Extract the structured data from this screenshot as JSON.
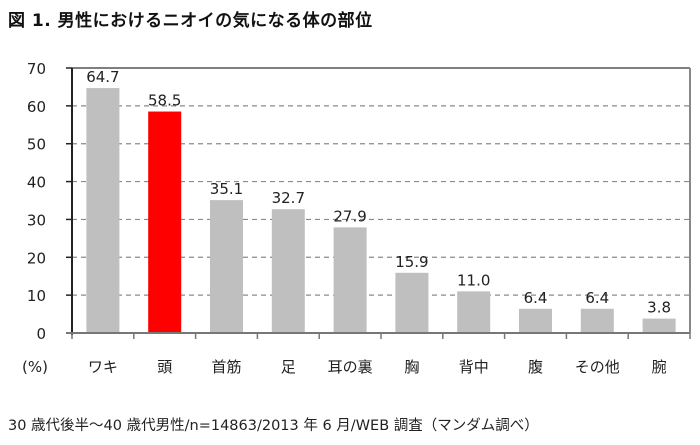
{
  "title": "図 1. 男性におけるニオイの気になる体の部位",
  "footnote": "30 歳代後半〜40 歳代男性/n=14863/2013 年 6 月/WEB 調査（マンダム調べ）",
  "chart_data": {
    "type": "bar",
    "title": "図 1. 男性におけるニオイの気になる体の部位",
    "xlabel": "",
    "ylabel": "(%)",
    "ylim": [
      0,
      70
    ],
    "yticks": [
      0,
      10,
      20,
      30,
      40,
      50,
      60,
      70
    ],
    "grid": "dashed horizontal",
    "legend": "none",
    "categories": [
      "ワキ",
      "頭",
      "首筋",
      "足",
      "耳の裏",
      "胸",
      "背中",
      "腹",
      "その他",
      "腕"
    ],
    "values": [
      64.7,
      58.5,
      35.1,
      32.7,
      27.9,
      15.9,
      11.0,
      6.4,
      6.4,
      3.8
    ],
    "value_labels": [
      "64.7",
      "58.5",
      "35.1",
      "32.7",
      "27.9",
      "15.9",
      "11.0",
      "6.4",
      "6.4",
      "3.8"
    ],
    "colors": {
      "default_bar": "#bfbfbf",
      "highlight_bar": "#ff0000",
      "highlight_index": 1
    },
    "source": "30 歳代後半〜40 歳代男性/n=14863/2013 年 6 月/WEB 調査（マンダム調べ）"
  }
}
